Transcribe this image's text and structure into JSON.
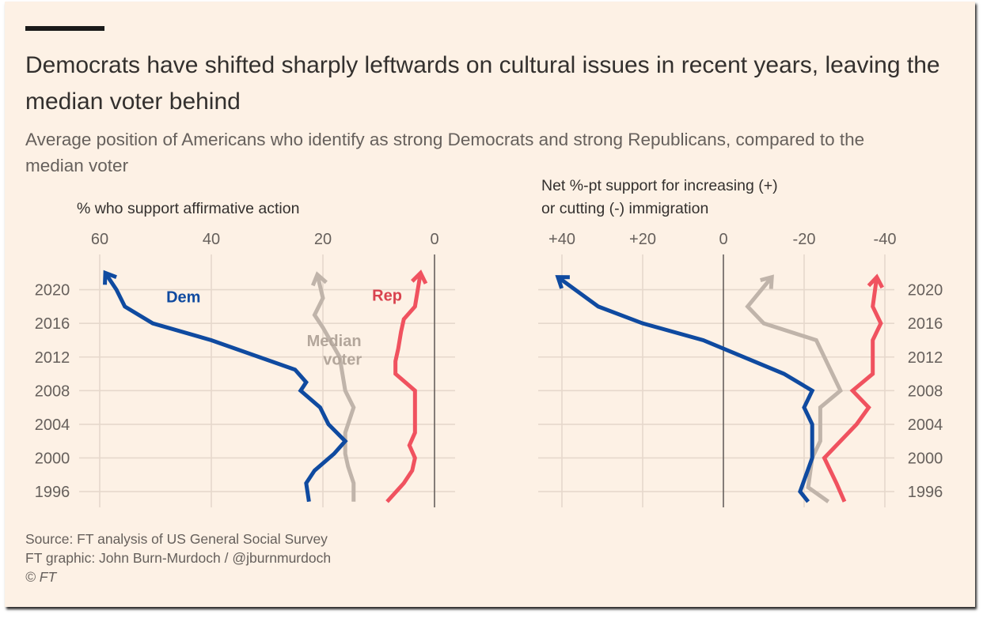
{
  "header": {
    "title": "Democrats have shifted sharply leftwards on cultural issues in recent years, leaving the median voter behind",
    "subtitle": "Average position of Americans who identify as strong Democrats and strong Republicans, compared to the median voter"
  },
  "footer": {
    "source": "Source: FT analysis of US General Social Survey",
    "graphic": "FT graphic: John Burn-Murdoch / @jburnmurdoch",
    "copyright": "© FT"
  },
  "colors": {
    "dem": "#0f4aa0",
    "rep": "#f0525f",
    "median": "#c0b4aa",
    "background": "#fdf1e5",
    "grid": "#e6d8cc",
    "zero_line": "#66605c"
  },
  "chart_data": [
    {
      "type": "line",
      "title": "% who support affirmative action",
      "xlim": [
        0,
        60
      ],
      "x_reversed": true,
      "xticks": [
        60,
        40,
        20,
        0
      ],
      "xtick_labels": [
        "60",
        "40",
        "20",
        "0"
      ],
      "ylim": [
        1994.5,
        2022.5
      ],
      "yticks": [
        1996,
        2000,
        2004,
        2008,
        2012,
        2016,
        2020
      ],
      "ytick_labels": [
        "1996",
        "2000",
        "2004",
        "2008",
        "2012",
        "2016",
        "2020"
      ],
      "ytick_side": "left",
      "series_labels": [
        {
          "series": "dem",
          "text": "Dem",
          "x": 45,
          "year": 2018.5
        },
        {
          "series": "median",
          "text": "Median",
          "x": 18,
          "year": 2013.3
        },
        {
          "series": "median",
          "text": "voter",
          "x": 16.5,
          "year": 2011.1
        },
        {
          "series": "rep",
          "text": "Rep",
          "x": 8.5,
          "year": 2018.7
        }
      ],
      "series": [
        {
          "key": "dem",
          "x": [
            22.5,
            23,
            21.5,
            18,
            16,
            19,
            20.5,
            24,
            23,
            25,
            40,
            50.5,
            55.5,
            57,
            59
          ],
          "y": [
            1994.8,
            1997,
            1998.5,
            2000.5,
            2002,
            2004,
            2006,
            2008,
            2009,
            2010.5,
            2014,
            2016,
            2018,
            2020,
            2022
          ]
        },
        {
          "key": "median",
          "x": [
            14.5,
            14.5,
            15.5,
            16,
            16,
            14.5,
            16,
            16.5,
            17,
            20,
            21.5,
            20,
            21
          ],
          "y": [
            1994.8,
            1997,
            1999,
            2000.5,
            2003,
            2006,
            2008,
            2010,
            2012,
            2015.5,
            2017,
            2019,
            2021.8
          ]
        },
        {
          "key": "rep",
          "x": [
            8.5,
            5.5,
            4,
            3.5,
            4.5,
            3.5,
            3.5,
            3.5,
            7,
            7,
            6.5,
            6,
            5.5,
            3.5,
            2.5
          ],
          "y": [
            1994.8,
            1997,
            1998.5,
            2000,
            2001.5,
            2003,
            2006,
            2008,
            2010,
            2011.5,
            2013,
            2015,
            2016.5,
            2018,
            2022
          ]
        }
      ]
    },
    {
      "type": "line",
      "title": "Net %-pt support for increasing (+) or cutting (-) immigration",
      "xlim": [
        -40,
        40
      ],
      "x_reversed": true,
      "xticks": [
        40,
        20,
        0,
        -20,
        -40
      ],
      "xtick_labels": [
        "+40",
        "+20",
        "0",
        "-20",
        "-40"
      ],
      "ylim": [
        1994.5,
        2022.5
      ],
      "yticks": [
        1996,
        2000,
        2004,
        2008,
        2012,
        2016,
        2020
      ],
      "ytick_labels": [
        "1996",
        "2000",
        "2004",
        "2008",
        "2012",
        "2016",
        "2020"
      ],
      "ytick_side": "right",
      "series": [
        {
          "key": "dem",
          "x": [
            -21,
            -19,
            -22,
            -22,
            -22,
            -20,
            -22,
            -15,
            5,
            20,
            31,
            41
          ],
          "y": [
            1994.8,
            1996,
            2000,
            2002,
            2004,
            2006,
            2008,
            2010,
            2014,
            2016,
            2018,
            2021.5
          ]
        },
        {
          "key": "median",
          "x": [
            -26,
            -21,
            -22,
            -24,
            -24,
            -24,
            -29,
            -27,
            -23,
            -10,
            -6,
            -12
          ],
          "y": [
            1994.8,
            1996.5,
            2000,
            2002,
            2004,
            2006,
            2008,
            2010,
            2014,
            2016,
            2018,
            2021.5
          ]
        },
        {
          "key": "rep",
          "x": [
            -30,
            -28,
            -25,
            -33,
            -36,
            -32,
            -37,
            -37,
            -39,
            -37,
            -38
          ],
          "y": [
            1994.8,
            1997,
            2000,
            2004,
            2006,
            2008,
            2010,
            2014,
            2016,
            2018,
            2021.5
          ]
        }
      ]
    }
  ]
}
